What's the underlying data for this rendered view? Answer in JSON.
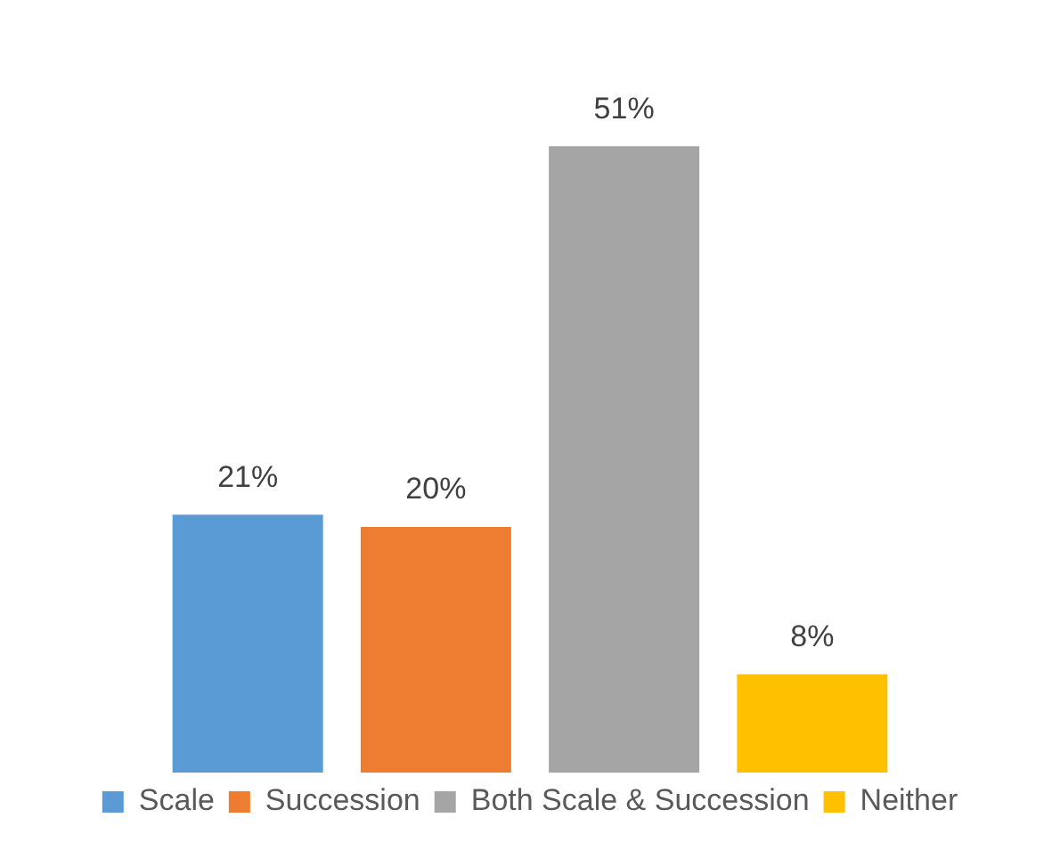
{
  "chart_data": {
    "type": "bar",
    "categories": [
      null
    ],
    "legend": "bottom",
    "series": [
      {
        "name": "Scale",
        "color": "#5b9bd5",
        "values": [
          21
        ],
        "value_labels": [
          "21%"
        ]
      },
      {
        "name": "Succession",
        "color": "#ed7d31",
        "values": [
          20
        ],
        "value_labels": [
          "20%"
        ]
      },
      {
        "name": "Both Scale & Succession",
        "color": "#a5a5a5",
        "values": [
          51
        ],
        "value_labels": [
          "51%"
        ]
      },
      {
        "name": "Neither",
        "color": "#ffc000",
        "values": [
          8
        ],
        "value_labels": [
          "8%"
        ]
      }
    ]
  }
}
